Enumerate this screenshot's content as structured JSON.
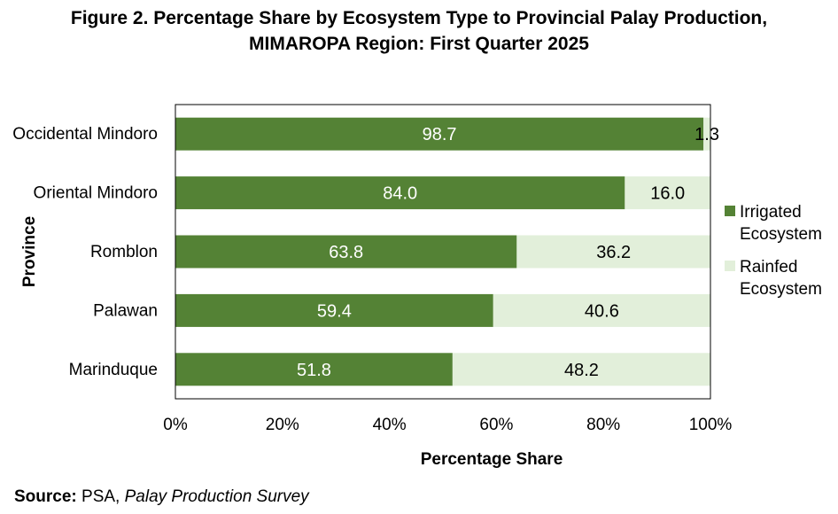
{
  "title": {
    "line1": "Figure 2. Percentage Share by Ecosystem Type to Provincial Palay Production,",
    "line2": "MIMAROPA Region: First Quarter 2025"
  },
  "source": {
    "label": "Source:",
    "org": "PSA,",
    "survey": "Palay Production Survey"
  },
  "colors": {
    "irrigated": "#548235",
    "rainfed": "#E2EFDA",
    "irrigated_label": "#ffffff",
    "rainfed_label": "#000000",
    "axis": "#000000"
  },
  "chart_data": {
    "type": "bar",
    "orientation": "horizontal",
    "stacked": true,
    "xlabel": "Percentage Share",
    "ylabel": "Province",
    "xlim": [
      0,
      100
    ],
    "x_ticks": [
      "0%",
      "20%",
      "40%",
      "60%",
      "80%",
      "100%"
    ],
    "categories": [
      "Occidental Mindoro",
      "Oriental Mindoro",
      "Romblon",
      "Palawan",
      "Marinduque"
    ],
    "series": [
      {
        "name": "Irrigated Ecosystem",
        "values": [
          98.7,
          84.0,
          63.8,
          59.4,
          51.8
        ],
        "labels": [
          "98.7",
          "84.0",
          "63.8",
          "59.4",
          "51.8"
        ]
      },
      {
        "name": "Rainfed Ecosystem",
        "values": [
          1.3,
          16.0,
          36.2,
          40.6,
          48.2
        ],
        "labels": [
          "1.3",
          "16.0",
          "36.2",
          "40.6",
          "48.2"
        ]
      }
    ],
    "legend": {
      "position": "right",
      "entries": [
        {
          "lines": [
            "Irrigated",
            "Ecosystem"
          ]
        },
        {
          "lines": [
            "Rainfed",
            "Ecosystem"
          ]
        }
      ]
    },
    "grid": false
  }
}
